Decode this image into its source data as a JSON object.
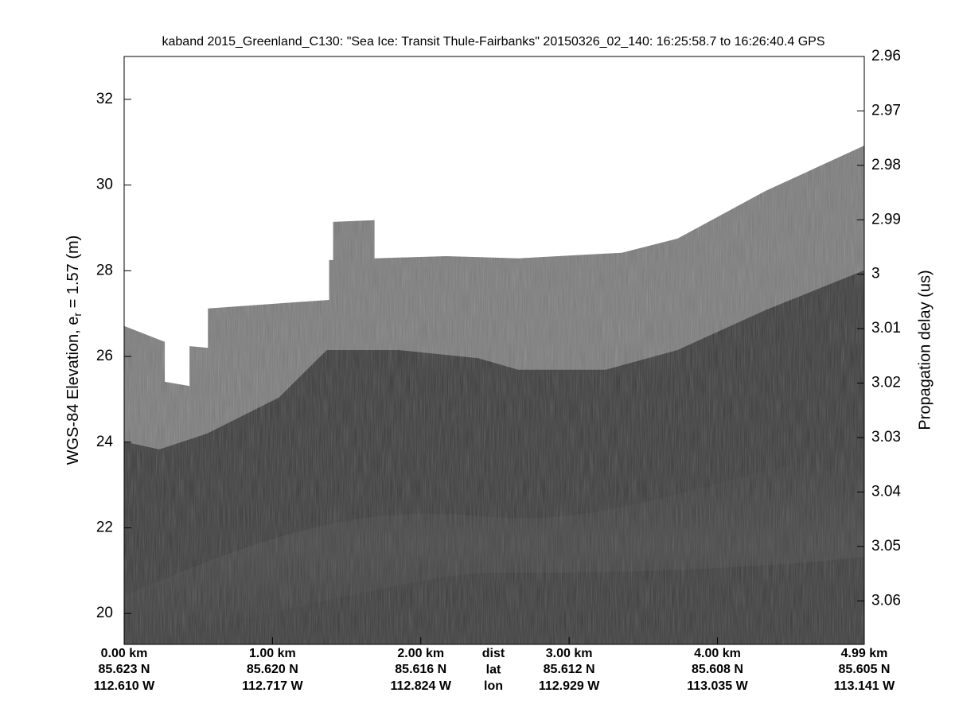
{
  "chart_data": {
    "type": "echogram",
    "title": "kaband 2015_Greenland_C130: \"Sea Ice: Transit Thule-Fairbanks\"  20150326_02_140: 16:25:58.7 to 16:26:40.4 GPS",
    "ylabel_parts": [
      "WGS-84 Elevation, e",
      "r",
      " = 1.57 (m)"
    ],
    "y2label": "Propagation delay (us)",
    "ylim": [
      19.28,
      33.0
    ],
    "yticks": [
      20,
      22,
      24,
      26,
      28,
      30,
      32
    ],
    "y2lim": [
      2.96,
      3.068
    ],
    "y2ticks": [
      2.96,
      2.97,
      2.98,
      2.99,
      3,
      3.01,
      3.02,
      3.03,
      3.04,
      3.05,
      3.06
    ],
    "y2_reversed": true,
    "xlim": [
      0,
      4.99
    ],
    "xticks": [
      {
        "value": 0,
        "label": "0.00 km"
      },
      {
        "value": 1,
        "label": "1.00 km"
      },
      {
        "value": 2,
        "label": "2.00 km"
      },
      {
        "value": 3,
        "label": "3.00 km"
      },
      {
        "value": 4,
        "label": "4.00 km"
      },
      {
        "value": 4.99,
        "label": "4.99 km"
      }
    ],
    "lat_labels": [
      "85.623 N",
      "85.620 N",
      "85.616 N",
      "85.612 N",
      "85.608 N",
      "85.605 N"
    ],
    "lon_labels": [
      "112.610 W",
      "112.717 W",
      "112.824 W",
      "112.929 W",
      "113.035 W",
      "113.141 W"
    ],
    "row_labels": [
      "dist",
      "lat",
      "lon"
    ],
    "surface": {
      "x": [
        0,
        0.274,
        0.274,
        0.441,
        0.441,
        0.565,
        0.565,
        1.382,
        1.382,
        1.409,
        1.409,
        1.688,
        1.688,
        2.172,
        2.656,
        3.355,
        3.731,
        4.323,
        4.99
      ],
      "y": [
        26.71,
        26.34,
        25.41,
        25.31,
        26.24,
        26.2,
        27.12,
        27.32,
        28.25,
        28.25,
        29.14,
        29.18,
        28.29,
        28.34,
        28.29,
        28.42,
        28.75,
        29.86,
        30.92
      ]
    },
    "bed": {
      "x": [
        0,
        0.237,
        0.559,
        1.043,
        1.366,
        1.849,
        2.387,
        2.656,
        3.247,
        3.731,
        4.323,
        4.99
      ],
      "y": [
        24.01,
        23.83,
        24.2,
        25.04,
        26.15,
        26.15,
        25.96,
        25.69,
        25.69,
        26.15,
        27.08,
        28.01
      ]
    },
    "colors": {
      "surface": "#7c7c7c",
      "bed": "#3c3c3c"
    }
  }
}
